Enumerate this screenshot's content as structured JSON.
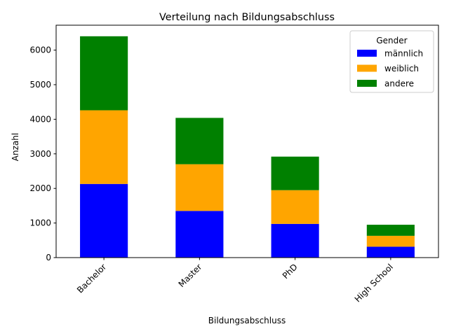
{
  "chart_data": {
    "type": "bar",
    "stacked": true,
    "title": "Verteilung nach Bildungsabschluss",
    "xlabel": "Bildungsabschluss",
    "ylabel": "Anzahl",
    "categories": [
      "Bachelor",
      "Master",
      "PhD",
      "High School"
    ],
    "series": [
      {
        "name": "männlich",
        "color": "#0000ff",
        "values": [
          2130,
          1350,
          975,
          315
        ]
      },
      {
        "name": "weiblich",
        "color": "#ffa500",
        "values": [
          2130,
          1350,
          975,
          315
        ]
      },
      {
        "name": "andere",
        "color": "#008000",
        "values": [
          2140,
          1340,
          970,
          320
        ]
      }
    ],
    "ylim": [
      0,
      6720
    ],
    "yticks": [
      0,
      1000,
      2000,
      3000,
      4000,
      5000,
      6000
    ],
    "grid": false,
    "legend": {
      "title": "Gender",
      "placement": "top-right"
    }
  }
}
